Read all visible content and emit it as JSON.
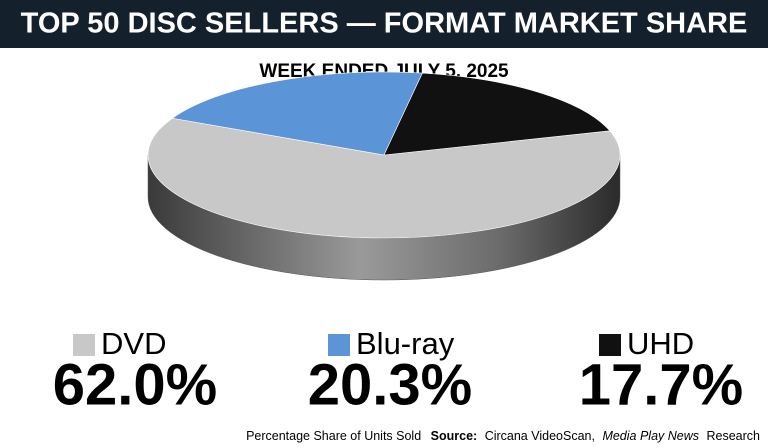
{
  "chart_data": {
    "type": "pie",
    "title": "TOP 50 DISC SELLERS — FORMAT MARKET SHARE",
    "subtitle": "WEEK ENDED JULY 5, 2025",
    "categories": [
      "DVD",
      "Blu-ray",
      "UHD"
    ],
    "values": [
      62.0,
      20.3,
      17.7
    ],
    "value_labels": [
      "62.0%",
      "20.3%",
      "17.7%"
    ],
    "colors": [
      "#c8c8c8",
      "#5b95d8",
      "#111111"
    ],
    "footnote": "Percentage Share of Units Sold",
    "source_label": "Source:",
    "source_parts": [
      "Circana VideoScan,",
      "Media Play News",
      "Research"
    ]
  }
}
